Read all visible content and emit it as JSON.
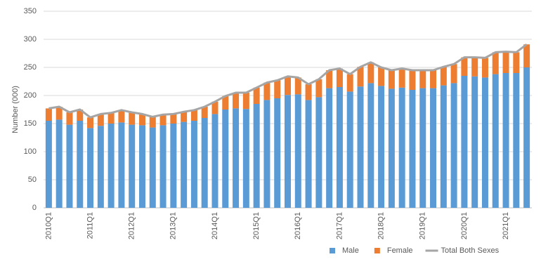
{
  "chart_data": {
    "type": "stacked-bar-line",
    "y_label": "Number (000)",
    "categories": [
      "2010Q1",
      null,
      null,
      null,
      "2011Q1",
      null,
      null,
      null,
      "2012Q1",
      null,
      null,
      null,
      "2013Q1",
      null,
      null,
      null,
      "2014Q1",
      null,
      null,
      null,
      "2015Q1",
      null,
      null,
      null,
      "2016Q1",
      null,
      null,
      null,
      "2017Q1",
      null,
      null,
      null,
      "2018Q1",
      null,
      null,
      null,
      "2019Q1",
      null,
      null,
      null,
      "2020Q1",
      null,
      null,
      null,
      "2021Q1",
      null,
      null
    ],
    "series": [
      {
        "name": "Male",
        "color": "#5b9bd5",
        "kind": "bar",
        "values": [
          155,
          157,
          148,
          155,
          142,
          146,
          150,
          152,
          148,
          147,
          143,
          147,
          150,
          153,
          155,
          160,
          167,
          175,
          177,
          176,
          185,
          192,
          195,
          201,
          202,
          192,
          197,
          213,
          215,
          207,
          216,
          222,
          217,
          212,
          214,
          210,
          213,
          213,
          218,
          222,
          235,
          234,
          232,
          238,
          240,
          240,
          250
        ]
      },
      {
        "name": "Female",
        "color": "#ed7d31",
        "kind": "bar",
        "values": [
          22,
          23,
          22,
          20,
          19,
          21,
          19,
          22,
          22,
          20,
          19,
          19,
          17,
          18,
          19,
          20,
          22,
          24,
          28,
          29,
          29,
          31,
          32,
          33,
          30,
          28,
          32,
          32,
          33,
          31,
          35,
          37,
          33,
          33,
          34,
          35,
          32,
          32,
          33,
          34,
          33,
          34,
          35,
          39,
          38,
          37,
          41
        ]
      },
      {
        "name": "Total Both Sexes",
        "color": "#a5a5a5",
        "kind": "line",
        "values": [
          177,
          180,
          170,
          175,
          161,
          167,
          169,
          174,
          170,
          167,
          162,
          166,
          167,
          171,
          174,
          180,
          189,
          199,
          205,
          205,
          214,
          223,
          227,
          234,
          232,
          220,
          229,
          245,
          248,
          238,
          251,
          259,
          250,
          245,
          248,
          245,
          245,
          245,
          251,
          256,
          268,
          268,
          267,
          277,
          278,
          277,
          291
        ]
      }
    ],
    "ylim": [
      0,
      350
    ],
    "yticks": [
      0,
      50,
      100,
      150,
      200,
      250,
      300,
      350
    ],
    "grid": true,
    "legend": "bottom-right"
  }
}
